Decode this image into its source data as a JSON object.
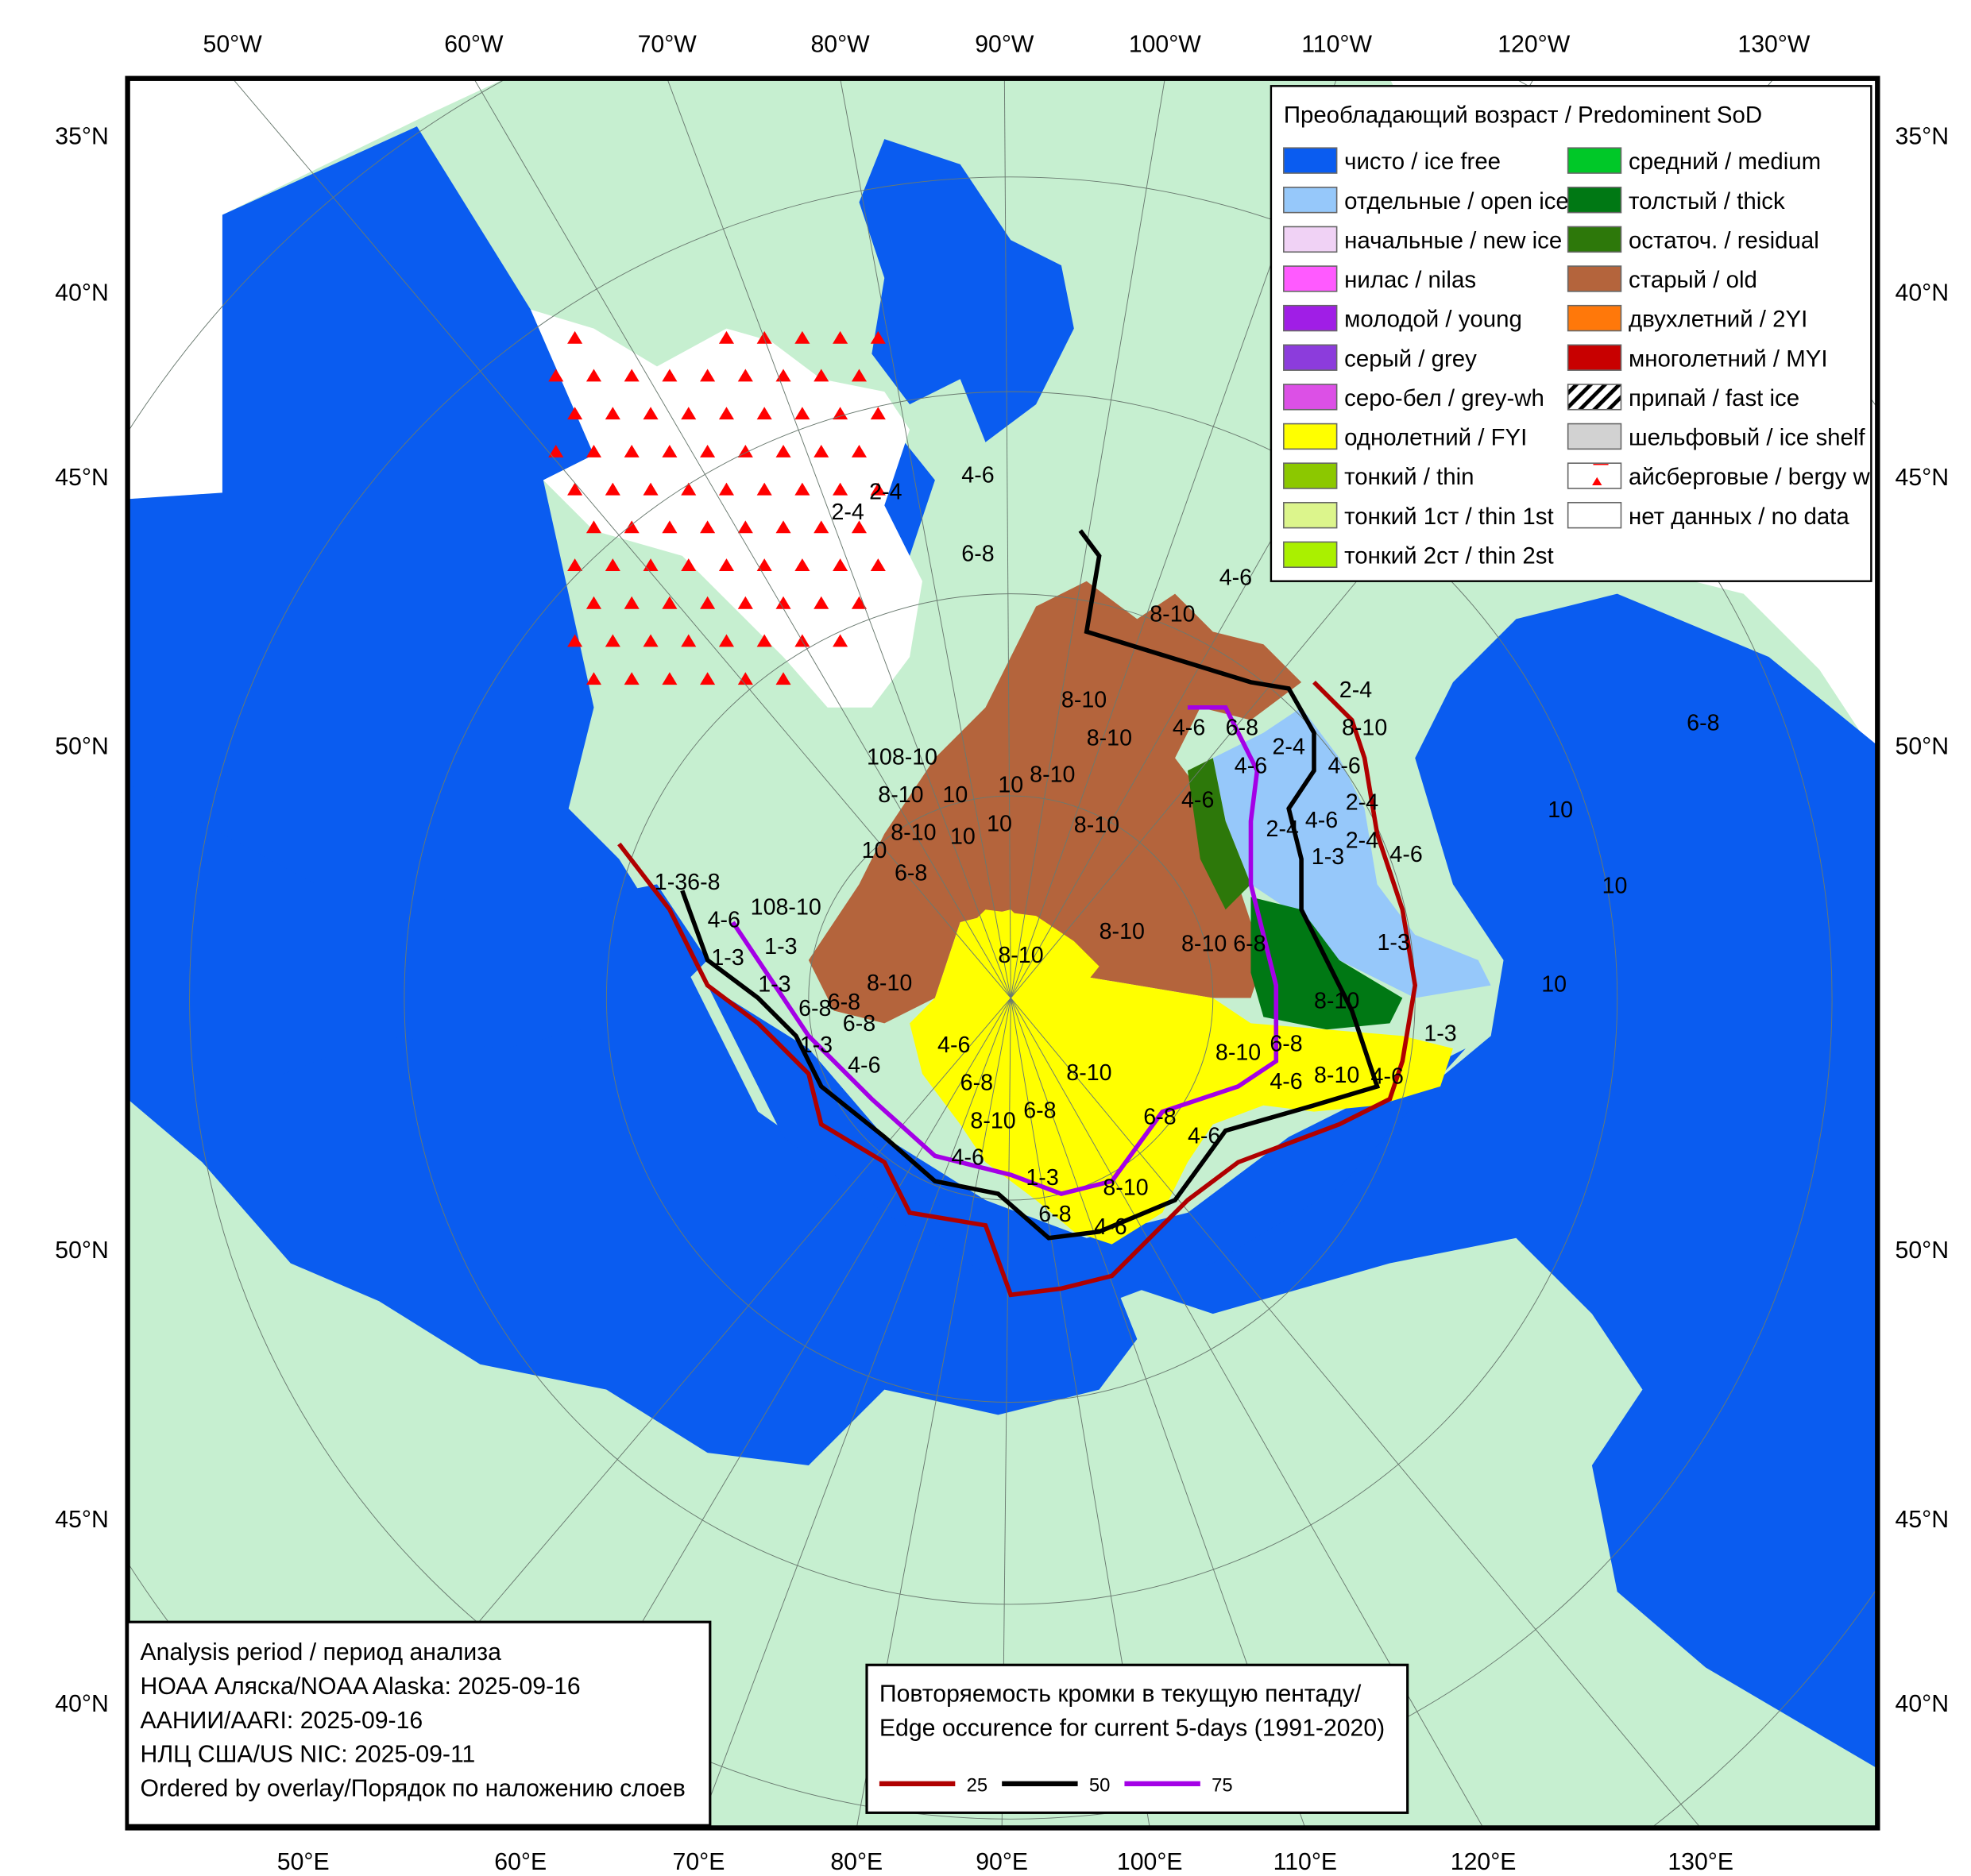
{
  "colors": {
    "land": "#c6efd0",
    "ocean": "#0a5cf0",
    "no_data": "#ffffff",
    "edge_25": "#b00000",
    "edge_50": "#000000",
    "edge_75": "#a400e6"
  },
  "axes": {
    "top": [
      "50°W",
      "60°W",
      "70°W",
      "80°W",
      "90°W",
      "100°W",
      "110°W",
      "120°W",
      "130°W"
    ],
    "bottom": [
      "50°E",
      "60°E",
      "70°E",
      "80°E",
      "90°E",
      "100°E",
      "110°E",
      "120°E",
      "130°E"
    ],
    "left": [
      "35°N",
      "40°N",
      "45°N",
      "50°N",
      "50°N",
      "45°N",
      "40°N"
    ],
    "right": [
      "35°N",
      "40°N",
      "45°N",
      "50°N",
      "50°N",
      "45°N",
      "40°N"
    ]
  },
  "legend": {
    "title": "Преобладающий возраст / Predominent SoD",
    "items": [
      {
        "label": "чисто / ice free",
        "color": "#0a5cf0"
      },
      {
        "label": "отдельные / open ice",
        "color": "#96c8fa"
      },
      {
        "label": "начальные / new ice",
        "color": "#f0d2f5"
      },
      {
        "label": "нилас / nilas",
        "color": "#ff5aff"
      },
      {
        "label": "молодой / young",
        "color": "#a01ee6"
      },
      {
        "label": "серый / grey",
        "color": "#8c3cdc"
      },
      {
        "label": "серо-бел / grey-wh",
        "color": "#dc50e6"
      },
      {
        "label": "однолетний / FYI",
        "color": "#ffff00"
      },
      {
        "label": "тонкий / thin",
        "color": "#8cc800"
      },
      {
        "label": "тонкий 1ст / thin 1st",
        "color": "#dcf58c"
      },
      {
        "label": "тонкий 2ст / thin 2st",
        "color": "#aaf000"
      },
      {
        "label": "средний / medium",
        "color": "#00c828"
      },
      {
        "label": "толстый / thick",
        "color": "#007814"
      },
      {
        "label": "остаточ. / residual",
        "color": "#2d780a"
      },
      {
        "label": "старый / old",
        "color": "#b4643c"
      },
      {
        "label": "двухлетний / 2YI",
        "color": "#ff780a"
      },
      {
        "label": "многолетний / MYI",
        "color": "#c80000"
      },
      {
        "label": "припай / fast ice",
        "color": "hatch"
      },
      {
        "label": "шельфовый / ice shelf",
        "color": "#d2d2d2"
      },
      {
        "label": "айсберговые / bergy w",
        "color": "bergy"
      },
      {
        "label": "нет данных / no data",
        "color": "#ffffff"
      }
    ]
  },
  "info_box": {
    "lines": [
      "Analysis period / период анализа",
      "НОАА Аляска/NOAA Alaska: 2025-09-16",
      "ААНИИ/AARI: 2025-09-16",
      "НЛЦ США/US NIC: 2025-09-11",
      "Ordered by overlay/Порядок по наложению слоев"
    ]
  },
  "edge_legend": {
    "title_line1": "Повторяемость кромки в текущую пентаду/",
    "title_line2": "Edge occurence for current 5-days (1991-2020)",
    "items": [
      {
        "label": "25",
        "color": "#b00000"
      },
      {
        "label": "50",
        "color": "#000000"
      },
      {
        "label": "75",
        "color": "#a400e6"
      }
    ]
  },
  "map": {
    "labels": [
      "8-10",
      "8-10",
      "8-10",
      "8-10 6-8",
      "4-6",
      "6-8",
      "8-10",
      "8-10",
      "6-8",
      "4-6",
      "1-3",
      "8-10",
      "6-8",
      "4-6",
      "6-8",
      "4-6",
      "8-10",
      "6-8",
      "4-6",
      "8-10",
      "4-6",
      "8-10",
      "1-3",
      "1-3",
      "1-3",
      "2-4",
      "4-6",
      "4-6",
      "2-4",
      "2-4",
      "4-6",
      "2-4",
      "4-6",
      "4-6",
      "8-10",
      "2-4",
      "6-8",
      "4-6",
      "6-8",
      "10",
      "10",
      "10",
      "6-8",
      "8-10",
      "1-3",
      "1-3",
      "4-6",
      "6-8",
      "6-8",
      "1-3",
      "4-6",
      "1-3",
      "6-8",
      "10",
      "8-10",
      "10",
      "10",
      "8-10",
      "10",
      "10",
      "8-10",
      "108-10",
      "8-10",
      "8-10",
      "8-10",
      "2-4",
      "2-4",
      "4-6",
      "6-8",
      "4-6",
      "1-36-8",
      "108-10"
    ]
  }
}
